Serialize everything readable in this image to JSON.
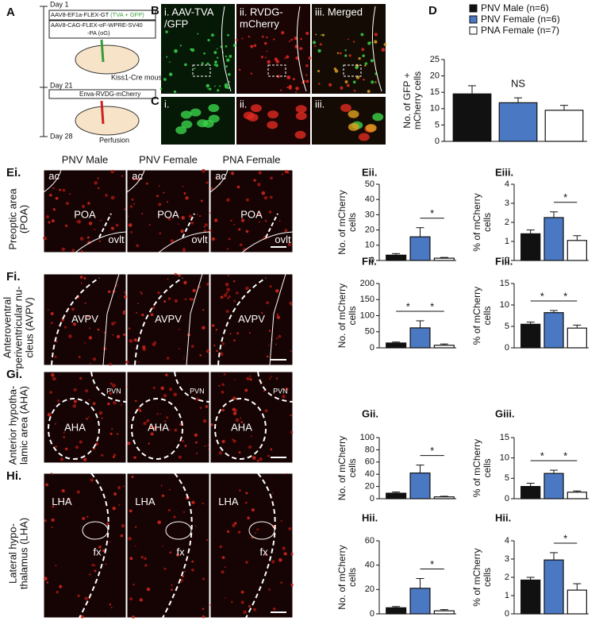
{
  "figure": {
    "schematic": {
      "letter": "A",
      "day1": "Day 1",
      "vector1": "AAV8-EF1a-FLEX-GT",
      "vector1_insert": "(TVA + GFP)",
      "vector2a": "AAV8-CAG-FLEX-oF-WPRE-SV40",
      "vector2b": "-PA (oG)",
      "mouse": "Kiss1-Cre mouse",
      "day21": "Day 21",
      "virus": "Enva-RVDG-mCherry",
      "day28": "Day 28",
      "perfusion": "Perfusion"
    },
    "panel_b": {
      "letter": "B",
      "labels": [
        [
          "i. AAV-TVA",
          "/GFP"
        ],
        [
          "ii. RVDG-",
          "mCherry"
        ],
        [
          "iii. Merged"
        ]
      ]
    },
    "panel_c": {
      "letter": "C",
      "labels": [
        "i.",
        "ii.",
        "iii."
      ]
    },
    "panel_d": {
      "letter": "D"
    },
    "columns": [
      "PNV Male",
      "PNV Female",
      "PNA Female"
    ],
    "rows": [
      {
        "panel": "Ei.",
        "region": [
          "Preoptic area",
          "(POA)"
        ],
        "image_labels": [
          "ac",
          "POA",
          "ovlt"
        ]
      },
      {
        "panel": "Fi.",
        "region": [
          "Anteroventral",
          "periventricular nu-",
          "cleus (AVPV)"
        ],
        "image_labels": [
          "AVPV"
        ]
      },
      {
        "panel": "Gi.",
        "region": [
          "Anterior hypotha-",
          "lamic area (AHA)"
        ],
        "image_labels": [
          "PVN",
          "AHA"
        ]
      },
      {
        "panel": "Hi.",
        "region": [
          "Lateral hypo-",
          "thalamus (LHA)"
        ],
        "image_labels": [
          "LHA",
          "fx"
        ]
      }
    ]
  },
  "legend": {
    "items": [
      {
        "name": "PNV Male (n=6)",
        "color": "#111111"
      },
      {
        "name": "PNV Female (n=6)",
        "color": "#4a78c2"
      },
      {
        "name": "PNA Female (n=7)",
        "color": "#ffffff"
      }
    ]
  },
  "chart_data": [
    {
      "type": "bar",
      "ylabel": [
        "No. of GFP +",
        "mCherry cells"
      ],
      "values": [
        14.5,
        11.8,
        9.5
      ],
      "errors": [
        2.5,
        1.5,
        1.5
      ],
      "ylim": [
        0,
        25
      ],
      "yticks": [
        0,
        5,
        10,
        15,
        20,
        25
      ],
      "annotations": [
        {
          "text": "NS",
          "from": 1,
          "to": 1
        }
      ]
    },
    {
      "type": "bar",
      "title": "Eii.",
      "ylabel": [
        "No. of mCherry",
        "cells"
      ],
      "values": [
        3.5,
        15.5,
        1.5
      ],
      "errors": [
        1,
        6,
        0.5
      ],
      "ylim": [
        0,
        50
      ],
      "yticks": [
        0,
        10,
        20,
        30,
        40,
        50
      ],
      "annotations": [
        {
          "text": "*",
          "from": 1,
          "to": 2
        }
      ]
    },
    {
      "type": "bar",
      "title": "Eiii.",
      "ylabel": [
        "% of mCherry",
        "cells"
      ],
      "values": [
        1.4,
        2.25,
        1.05
      ],
      "errors": [
        0.2,
        0.3,
        0.25
      ],
      "ylim": [
        0,
        4
      ],
      "yticks": [
        0,
        1,
        2,
        3,
        4
      ],
      "annotations": [
        {
          "text": "*",
          "from": 1,
          "to": 2
        }
      ]
    },
    {
      "type": "bar",
      "title": "Fii.",
      "ylabel": [
        "No. of mCherry",
        "cells"
      ],
      "values": [
        15,
        62,
        8
      ],
      "errors": [
        3,
        22,
        4
      ],
      "ylim": [
        0,
        200
      ],
      "yticks": [
        0,
        50,
        100,
        150,
        200
      ],
      "annotations": [
        {
          "text": "*",
          "from": 0,
          "to": 1
        },
        {
          "text": "*",
          "from": 1,
          "to": 2
        }
      ]
    },
    {
      "type": "bar",
      "title": "Fiii.",
      "ylabel": [
        "% of mCherry",
        "cells"
      ],
      "values": [
        5.5,
        8.2,
        4.6
      ],
      "errors": [
        0.5,
        0.5,
        0.7
      ],
      "ylim": [
        0,
        15
      ],
      "yticks": [
        0,
        5,
        10,
        15
      ],
      "annotations": [
        {
          "text": "*",
          "from": 0,
          "to": 1
        },
        {
          "text": "*",
          "from": 1,
          "to": 2
        }
      ]
    },
    {
      "type": "bar",
      "title": "Gii.",
      "ylabel": [
        "No. of mCherry",
        "cells"
      ],
      "values": [
        9,
        42,
        3
      ],
      "errors": [
        2,
        13,
        1
      ],
      "ylim": [
        0,
        100
      ],
      "yticks": [
        0,
        20,
        40,
        60,
        80,
        100
      ],
      "annotations": [
        {
          "text": "*",
          "from": 1,
          "to": 2
        }
      ]
    },
    {
      "type": "bar",
      "title": "Giii.",
      "ylabel": [
        "% of mCherry",
        "cells"
      ],
      "values": [
        3,
        6.2,
        1.6
      ],
      "errors": [
        0.8,
        0.8,
        0.3
      ],
      "ylim": [
        0,
        15
      ],
      "yticks": [
        0,
        5,
        10,
        15
      ],
      "annotations": [
        {
          "text": "*",
          "from": 0,
          "to": 1
        },
        {
          "text": "*",
          "from": 1,
          "to": 2
        }
      ]
    },
    {
      "type": "bar",
      "title": "Hii.",
      "ylabel": [
        "No. of mCherry",
        "cells"
      ],
      "values": [
        5,
        21,
        2.5
      ],
      "errors": [
        1,
        8,
        1
      ],
      "ylim": [
        0,
        60
      ],
      "yticks": [
        0,
        20,
        40,
        60
      ],
      "annotations": [
        {
          "text": "*",
          "from": 1,
          "to": 2
        }
      ]
    },
    {
      "type": "bar",
      "title": "Hii.",
      "ylabel": [
        "% of mCherry",
        "cells"
      ],
      "values": [
        1.85,
        2.95,
        1.3
      ],
      "errors": [
        0.15,
        0.4,
        0.35
      ],
      "ylim": [
        0,
        4
      ],
      "yticks": [
        0,
        1,
        2,
        3,
        4
      ],
      "annotations": [
        {
          "text": "*",
          "from": 1,
          "to": 2
        }
      ]
    }
  ]
}
